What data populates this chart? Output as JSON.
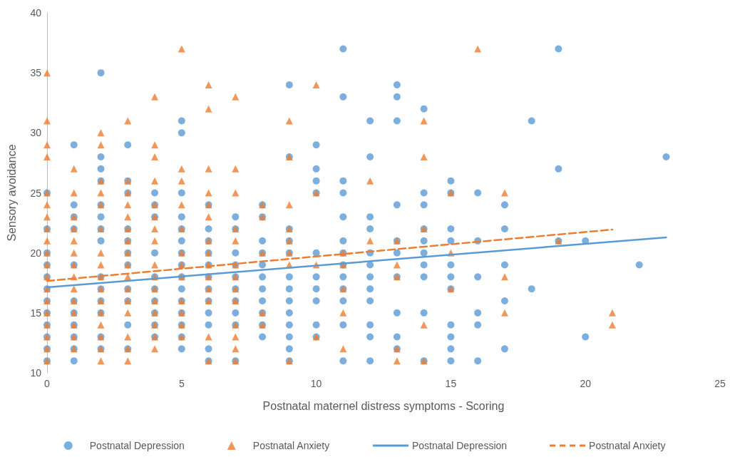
{
  "chart_data": {
    "type": "scatter",
    "xlabel": "Postnatal maternel distress symptoms - Scoring",
    "ylabel": "Sensory avoidance",
    "xlim": [
      0,
      25
    ],
    "xticks": [
      0,
      5,
      10,
      15,
      20,
      25
    ],
    "ylim": [
      10,
      40
    ],
    "yticks": [
      10,
      15,
      20,
      25,
      30,
      35,
      40
    ],
    "grid": false,
    "legend": "bottom",
    "series": [
      {
        "name": "Postnatal Depression",
        "type": "scatter",
        "marker": "circle",
        "color": "#5b9bd5",
        "x": [
          0,
          0,
          0,
          0,
          0,
          0,
          0,
          0,
          0,
          0,
          0,
          0,
          1,
          1,
          1,
          1,
          1,
          1,
          1,
          1,
          1,
          1,
          1,
          2,
          2,
          2,
          2,
          2,
          2,
          2,
          2,
          2,
          2,
          2,
          2,
          2,
          2,
          3,
          3,
          3,
          3,
          3,
          3,
          3,
          3,
          3,
          3,
          3,
          4,
          4,
          4,
          4,
          4,
          4,
          4,
          4,
          4,
          4,
          5,
          5,
          5,
          5,
          5,
          5,
          5,
          5,
          5,
          5,
          5,
          5,
          5,
          5,
          5,
          6,
          6,
          6,
          6,
          6,
          6,
          6,
          6,
          6,
          6,
          6,
          6,
          7,
          7,
          7,
          7,
          7,
          7,
          7,
          7,
          7,
          7,
          8,
          8,
          8,
          8,
          8,
          8,
          8,
          8,
          8,
          8,
          8,
          9,
          9,
          9,
          9,
          9,
          9,
          9,
          9,
          9,
          9,
          9,
          9,
          9,
          10,
          10,
          10,
          10,
          10,
          10,
          10,
          10,
          10,
          10,
          11,
          11,
          11,
          11,
          11,
          11,
          11,
          11,
          11,
          11,
          11,
          11,
          11,
          12,
          12,
          12,
          12,
          12,
          12,
          12,
          12,
          12,
          12,
          12,
          12,
          13,
          13,
          13,
          13,
          13,
          13,
          13,
          13,
          13,
          13,
          14,
          14,
          14,
          14,
          14,
          14,
          14,
          14,
          14,
          14,
          15,
          15,
          15,
          15,
          15,
          15,
          15,
          15,
          15,
          15,
          15,
          16,
          16,
          16,
          16,
          16,
          16,
          17,
          17,
          17,
          17,
          17,
          18,
          18,
          19,
          19,
          19,
          20,
          20,
          22,
          23
        ],
        "values": [
          25,
          22,
          20,
          19,
          18,
          17,
          16,
          15,
          14,
          13,
          12,
          11,
          29,
          24,
          23,
          22,
          19,
          16,
          15,
          14,
          13,
          12,
          11,
          35,
          28,
          27,
          26,
          24,
          23,
          22,
          21,
          18,
          17,
          16,
          15,
          13,
          12,
          29,
          26,
          25,
          22,
          21,
          20,
          19,
          17,
          16,
          14,
          12,
          25,
          24,
          23,
          20,
          18,
          17,
          16,
          15,
          14,
          13,
          31,
          30,
          25,
          23,
          22,
          21,
          20,
          19,
          18,
          17,
          16,
          15,
          14,
          13,
          12,
          24,
          22,
          21,
          20,
          19,
          18,
          17,
          16,
          15,
          14,
          12,
          11,
          23,
          22,
          20,
          19,
          18,
          17,
          16,
          15,
          14,
          11,
          24,
          23,
          21,
          20,
          19,
          18,
          17,
          16,
          15,
          14,
          13,
          34,
          28,
          22,
          21,
          20,
          18,
          17,
          16,
          15,
          14,
          13,
          12,
          11,
          29,
          27,
          26,
          25,
          20,
          18,
          17,
          16,
          14,
          13,
          37,
          33,
          26,
          25,
          23,
          21,
          20,
          19,
          18,
          17,
          16,
          14,
          11,
          31,
          28,
          23,
          22,
          20,
          19,
          18,
          17,
          16,
          14,
          13,
          11,
          34,
          33,
          31,
          24,
          21,
          20,
          18,
          15,
          13,
          12,
          32,
          25,
          24,
          22,
          21,
          20,
          19,
          18,
          15,
          11,
          26,
          25,
          22,
          21,
          19,
          18,
          17,
          14,
          13,
          12,
          11,
          25,
          21,
          18,
          15,
          14,
          11,
          24,
          22,
          19,
          16,
          12,
          31,
          17,
          37,
          27,
          21,
          21,
          13,
          19,
          28
        ]
      },
      {
        "name": "Postnatal Anxiety",
        "type": "scatter",
        "marker": "triangle",
        "color": "#ed7d31",
        "x": [
          0,
          0,
          0,
          0,
          0,
          0,
          0,
          0,
          0,
          0,
          0,
          0,
          0,
          0,
          0,
          0,
          0,
          0,
          0,
          1,
          1,
          1,
          1,
          1,
          1,
          1,
          1,
          1,
          1,
          1,
          1,
          1,
          1,
          2,
          2,
          2,
          2,
          2,
          2,
          2,
          2,
          2,
          2,
          2,
          2,
          2,
          2,
          2,
          2,
          3,
          3,
          3,
          3,
          3,
          3,
          3,
          3,
          3,
          3,
          3,
          3,
          3,
          3,
          3,
          3,
          4,
          4,
          4,
          4,
          4,
          4,
          4,
          4,
          4,
          4,
          4,
          4,
          4,
          4,
          4,
          4,
          5,
          5,
          5,
          5,
          5,
          5,
          5,
          5,
          5,
          5,
          5,
          5,
          6,
          6,
          6,
          6,
          6,
          6,
          6,
          6,
          6,
          6,
          6,
          6,
          6,
          6,
          7,
          7,
          7,
          7,
          7,
          7,
          7,
          7,
          7,
          7,
          7,
          7,
          7,
          8,
          8,
          8,
          8,
          8,
          9,
          9,
          9,
          9,
          9,
          9,
          9,
          9,
          10,
          10,
          10,
          10,
          11,
          11,
          11,
          11,
          11,
          12,
          12,
          13,
          13,
          13,
          13,
          13,
          14,
          14,
          14,
          14,
          14,
          15,
          15,
          15,
          16,
          17,
          17,
          17,
          19,
          21,
          21
        ],
        "values": [
          35,
          31,
          29,
          28,
          25,
          24,
          23,
          22,
          21,
          20,
          19,
          18,
          17,
          16,
          15,
          14,
          13,
          12,
          11,
          27,
          25,
          23,
          22,
          21,
          20,
          19,
          18,
          17,
          16,
          15,
          14,
          13,
          12,
          30,
          29,
          26,
          25,
          24,
          22,
          20,
          19,
          18,
          17,
          16,
          15,
          14,
          13,
          12,
          11,
          31,
          26,
          25,
          24,
          23,
          22,
          21,
          20,
          19,
          18,
          17,
          16,
          15,
          13,
          12,
          11,
          33,
          29,
          28,
          26,
          24,
          23,
          22,
          21,
          19,
          18,
          17,
          16,
          15,
          14,
          13,
          12,
          37,
          27,
          26,
          24,
          22,
          20,
          19,
          18,
          16,
          15,
          14,
          13,
          34,
          32,
          27,
          25,
          24,
          23,
          21,
          20,
          19,
          18,
          17,
          16,
          13,
          11,
          33,
          27,
          25,
          22,
          21,
          19,
          18,
          17,
          16,
          14,
          13,
          12,
          11,
          24,
          23,
          20,
          15,
          14,
          31,
          28,
          24,
          22,
          21,
          20,
          19,
          11,
          34,
          25,
          19,
          13,
          20,
          19,
          17,
          15,
          12,
          26,
          21,
          21,
          19,
          18,
          12,
          11,
          31,
          28,
          22,
          14,
          11,
          25,
          20,
          17,
          37,
          25,
          18,
          15,
          21,
          15,
          14
        ]
      },
      {
        "name": "Postnatal Depression",
        "type": "line",
        "marker": "none",
        "line_style": "solid",
        "color": "#5b9bd5",
        "x": [
          0,
          23
        ],
        "values": [
          17.13,
          21.29
        ]
      },
      {
        "name": "Postnatal Anxiety",
        "type": "line",
        "marker": "none",
        "line_style": "dashed",
        "color": "#ed7d31",
        "x": [
          0,
          21
        ],
        "values": [
          17.66,
          21.94
        ]
      }
    ]
  }
}
